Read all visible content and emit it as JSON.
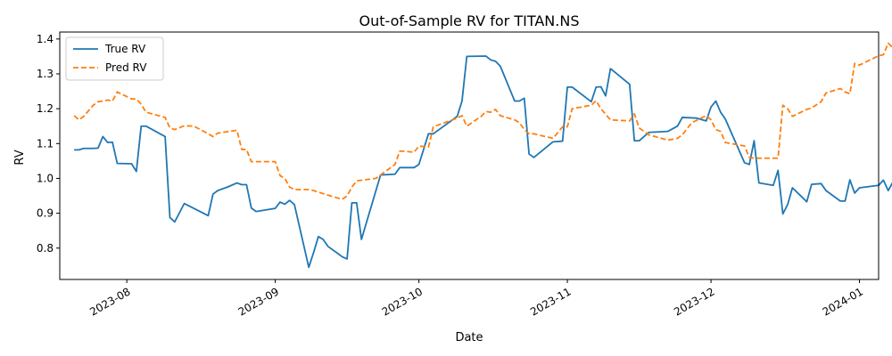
{
  "chart_data": {
    "type": "line",
    "title": "Out-of-Sample RV for TITAN.NS",
    "xlabel": "Date",
    "ylabel": "RV",
    "xlim": [
      "2023-07-18",
      "2024-01-05"
    ],
    "ylim": [
      0.71,
      1.42
    ],
    "x_ticks": [
      "2023-08-01",
      "2023-09-01",
      "2023-10-01",
      "2023-11-01",
      "2023-12-01",
      "2024-01-01"
    ],
    "x_tick_labels": [
      "2023-08",
      "2023-09",
      "2023-10",
      "2023-11",
      "2023-12",
      "2024-01"
    ],
    "y_ticks": [
      0.8,
      0.9,
      1.0,
      1.1,
      1.2,
      1.3,
      1.4
    ],
    "y_tick_labels": [
      "0.8",
      "0.9",
      "1.0",
      "1.1",
      "1.2",
      "1.3",
      "1.4"
    ],
    "grid": false,
    "legend_position": "top-left",
    "series": [
      {
        "name": "True RV",
        "color": "#1f77b4",
        "style": "solid",
        "points": [
          [
            "2023-07-21",
            1.082
          ],
          [
            "2023-07-22",
            1.082
          ],
          [
            "2023-07-23",
            1.086
          ],
          [
            "2023-07-25",
            1.086
          ],
          [
            "2023-07-26",
            1.087
          ],
          [
            "2023-07-27",
            1.12
          ],
          [
            "2023-07-28",
            1.103
          ],
          [
            "2023-07-29",
            1.104
          ],
          [
            "2023-07-30",
            1.043
          ],
          [
            "2023-08-02",
            1.042
          ],
          [
            "2023-08-03",
            1.02
          ],
          [
            "2023-08-04",
            1.15
          ],
          [
            "2023-08-05",
            1.15
          ],
          [
            "2023-08-09",
            1.12
          ],
          [
            "2023-08-10",
            0.888
          ],
          [
            "2023-08-11",
            0.875
          ],
          [
            "2023-08-13",
            0.928
          ],
          [
            "2023-08-18",
            0.893
          ],
          [
            "2023-08-19",
            0.955
          ],
          [
            "2023-08-20",
            0.965
          ],
          [
            "2023-08-22",
            0.975
          ],
          [
            "2023-08-24",
            0.987
          ],
          [
            "2023-08-25",
            0.982
          ],
          [
            "2023-08-26",
            0.982
          ],
          [
            "2023-08-27",
            0.915
          ],
          [
            "2023-08-28",
            0.905
          ],
          [
            "2023-09-01",
            0.914
          ],
          [
            "2023-09-02",
            0.932
          ],
          [
            "2023-09-03",
            0.926
          ],
          [
            "2023-09-04",
            0.937
          ],
          [
            "2023-09-05",
            0.925
          ],
          [
            "2023-09-08",
            0.745
          ],
          [
            "2023-09-09",
            0.787
          ],
          [
            "2023-09-10",
            0.833
          ],
          [
            "2023-09-11",
            0.825
          ],
          [
            "2023-09-12",
            0.805
          ],
          [
            "2023-09-15",
            0.775
          ],
          [
            "2023-09-16",
            0.769
          ],
          [
            "2023-09-17",
            0.93
          ],
          [
            "2023-09-18",
            0.93
          ],
          [
            "2023-09-19",
            0.825
          ],
          [
            "2023-09-23",
            1.01
          ],
          [
            "2023-09-26",
            1.012
          ],
          [
            "2023-09-27",
            1.031
          ],
          [
            "2023-09-30",
            1.031
          ],
          [
            "2023-10-01",
            1.04
          ],
          [
            "2023-10-03",
            1.128
          ],
          [
            "2023-10-04",
            1.128
          ],
          [
            "2023-10-09",
            1.178
          ],
          [
            "2023-10-10",
            1.222
          ],
          [
            "2023-10-11",
            1.35
          ],
          [
            "2023-10-15",
            1.351
          ],
          [
            "2023-10-16",
            1.34
          ],
          [
            "2023-10-17",
            1.336
          ],
          [
            "2023-10-18",
            1.322
          ],
          [
            "2023-10-21",
            1.222
          ],
          [
            "2023-10-22",
            1.222
          ],
          [
            "2023-10-23",
            1.23
          ],
          [
            "2023-10-24",
            1.07
          ],
          [
            "2023-10-25",
            1.06
          ],
          [
            "2023-10-29",
            1.105
          ],
          [
            "2023-10-31",
            1.107
          ],
          [
            "2023-11-01",
            1.262
          ],
          [
            "2023-11-02",
            1.262
          ],
          [
            "2023-11-06",
            1.22
          ],
          [
            "2023-11-07",
            1.262
          ],
          [
            "2023-11-08",
            1.263
          ],
          [
            "2023-11-09",
            1.237
          ],
          [
            "2023-11-10",
            1.315
          ],
          [
            "2023-11-14",
            1.27
          ],
          [
            "2023-11-15",
            1.108
          ],
          [
            "2023-11-16",
            1.108
          ],
          [
            "2023-11-18",
            1.132
          ],
          [
            "2023-11-22",
            1.135
          ],
          [
            "2023-11-24",
            1.15
          ],
          [
            "2023-11-25",
            1.175
          ],
          [
            "2023-11-28",
            1.173
          ],
          [
            "2023-11-30",
            1.165
          ],
          [
            "2023-12-01",
            1.205
          ],
          [
            "2023-12-02",
            1.222
          ],
          [
            "2023-12-03",
            1.19
          ],
          [
            "2023-12-04",
            1.17
          ],
          [
            "2023-12-08",
            1.045
          ],
          [
            "2023-12-09",
            1.04
          ],
          [
            "2023-12-10",
            1.108
          ],
          [
            "2023-12-11",
            0.987
          ],
          [
            "2023-12-14",
            0.98
          ],
          [
            "2023-12-15",
            1.023
          ],
          [
            "2023-12-16",
            0.898
          ],
          [
            "2023-12-17",
            0.925
          ],
          [
            "2023-12-18",
            0.973
          ],
          [
            "2023-12-21",
            0.933
          ],
          [
            "2023-12-22",
            0.983
          ],
          [
            "2023-12-24",
            0.985
          ],
          [
            "2023-12-25",
            0.965
          ],
          [
            "2023-12-28",
            0.935
          ],
          [
            "2023-12-29",
            0.935
          ],
          [
            "2023-12-30",
            0.996
          ],
          [
            "2023-12-31",
            0.958
          ],
          [
            "2024-01-01",
            0.973
          ],
          [
            "2024-01-05",
            0.98
          ],
          [
            "2024-01-06",
            0.995
          ],
          [
            "2024-01-07",
            0.965
          ],
          [
            "2024-01-08",
            0.99
          ]
        ]
      },
      {
        "name": "Pred RV",
        "color": "#ff7f0e",
        "style": "dashed",
        "points": [
          [
            "2023-07-21",
            1.18
          ],
          [
            "2023-07-22",
            1.168
          ],
          [
            "2023-07-23",
            1.178
          ],
          [
            "2023-07-25",
            1.21
          ],
          [
            "2023-07-26",
            1.22
          ],
          [
            "2023-07-27",
            1.222
          ],
          [
            "2023-07-28",
            1.225
          ],
          [
            "2023-07-29",
            1.222
          ],
          [
            "2023-07-30",
            1.248
          ],
          [
            "2023-08-02",
            1.228
          ],
          [
            "2023-08-03",
            1.228
          ],
          [
            "2023-08-04",
            1.213
          ],
          [
            "2023-08-05",
            1.19
          ],
          [
            "2023-08-09",
            1.175
          ],
          [
            "2023-08-10",
            1.145
          ],
          [
            "2023-08-11",
            1.14
          ],
          [
            "2023-08-13",
            1.151
          ],
          [
            "2023-08-15",
            1.15
          ],
          [
            "2023-08-18",
            1.128
          ],
          [
            "2023-08-19",
            1.12
          ],
          [
            "2023-08-20",
            1.13
          ],
          [
            "2023-08-24",
            1.138
          ],
          [
            "2023-08-25",
            1.083
          ],
          [
            "2023-08-26",
            1.083
          ],
          [
            "2023-08-27",
            1.048
          ],
          [
            "2023-08-28",
            1.048
          ],
          [
            "2023-09-01",
            1.048
          ],
          [
            "2023-09-02",
            1.008
          ],
          [
            "2023-09-03",
            1.0
          ],
          [
            "2023-09-04",
            0.975
          ],
          [
            "2023-09-05",
            0.968
          ],
          [
            "2023-09-08",
            0.968
          ],
          [
            "2023-09-09",
            0.965
          ],
          [
            "2023-09-12",
            0.952
          ],
          [
            "2023-09-15",
            0.94
          ],
          [
            "2023-09-16",
            0.95
          ],
          [
            "2023-09-17",
            0.975
          ],
          [
            "2023-09-18",
            0.993
          ],
          [
            "2023-09-22",
            1.0
          ],
          [
            "2023-09-23",
            1.01
          ],
          [
            "2023-09-26",
            1.04
          ],
          [
            "2023-09-27",
            1.078
          ],
          [
            "2023-09-28",
            1.078
          ],
          [
            "2023-09-30",
            1.075
          ],
          [
            "2023-10-01",
            1.093
          ],
          [
            "2023-10-03",
            1.09
          ],
          [
            "2023-10-04",
            1.148
          ],
          [
            "2023-10-09",
            1.173
          ],
          [
            "2023-10-10",
            1.18
          ],
          [
            "2023-10-11",
            1.15
          ],
          [
            "2023-10-14",
            1.178
          ],
          [
            "2023-10-15",
            1.192
          ],
          [
            "2023-10-16",
            1.19
          ],
          [
            "2023-10-17",
            1.198
          ],
          [
            "2023-10-18",
            1.18
          ],
          [
            "2023-10-21",
            1.168
          ],
          [
            "2023-10-22",
            1.16
          ],
          [
            "2023-10-23",
            1.14
          ],
          [
            "2023-10-24",
            1.128
          ],
          [
            "2023-10-25",
            1.128
          ],
          [
            "2023-10-29",
            1.115
          ],
          [
            "2023-10-31",
            1.148
          ],
          [
            "2023-11-01",
            1.148
          ],
          [
            "2023-11-02",
            1.2
          ],
          [
            "2023-11-06",
            1.21
          ],
          [
            "2023-11-07",
            1.223
          ],
          [
            "2023-11-08",
            1.2
          ],
          [
            "2023-11-10",
            1.168
          ],
          [
            "2023-11-14",
            1.165
          ],
          [
            "2023-11-15",
            1.185
          ],
          [
            "2023-11-16",
            1.145
          ],
          [
            "2023-11-18",
            1.125
          ],
          [
            "2023-11-22",
            1.11
          ],
          [
            "2023-11-24",
            1.115
          ],
          [
            "2023-11-25",
            1.125
          ],
          [
            "2023-11-27",
            1.16
          ],
          [
            "2023-11-30",
            1.18
          ],
          [
            "2023-12-01",
            1.168
          ],
          [
            "2023-12-02",
            1.14
          ],
          [
            "2023-12-03",
            1.135
          ],
          [
            "2023-12-04",
            1.103
          ],
          [
            "2023-12-08",
            1.093
          ],
          [
            "2023-12-09",
            1.06
          ],
          [
            "2023-12-10",
            1.058
          ],
          [
            "2023-12-14",
            1.058
          ],
          [
            "2023-12-15",
            1.058
          ],
          [
            "2023-12-16",
            1.21
          ],
          [
            "2023-12-17",
            1.2
          ],
          [
            "2023-12-18",
            1.178
          ],
          [
            "2023-12-21",
            1.198
          ],
          [
            "2023-12-22",
            1.202
          ],
          [
            "2023-12-24",
            1.22
          ],
          [
            "2023-12-25",
            1.245
          ],
          [
            "2023-12-28",
            1.258
          ],
          [
            "2023-12-29",
            1.248
          ],
          [
            "2023-12-30",
            1.243
          ],
          [
            "2023-12-31",
            1.33
          ],
          [
            "2024-01-01",
            1.325
          ],
          [
            "2024-01-05",
            1.352
          ],
          [
            "2024-01-06",
            1.355
          ],
          [
            "2024-01-07",
            1.388
          ],
          [
            "2024-01-08",
            1.375
          ]
        ]
      }
    ]
  }
}
